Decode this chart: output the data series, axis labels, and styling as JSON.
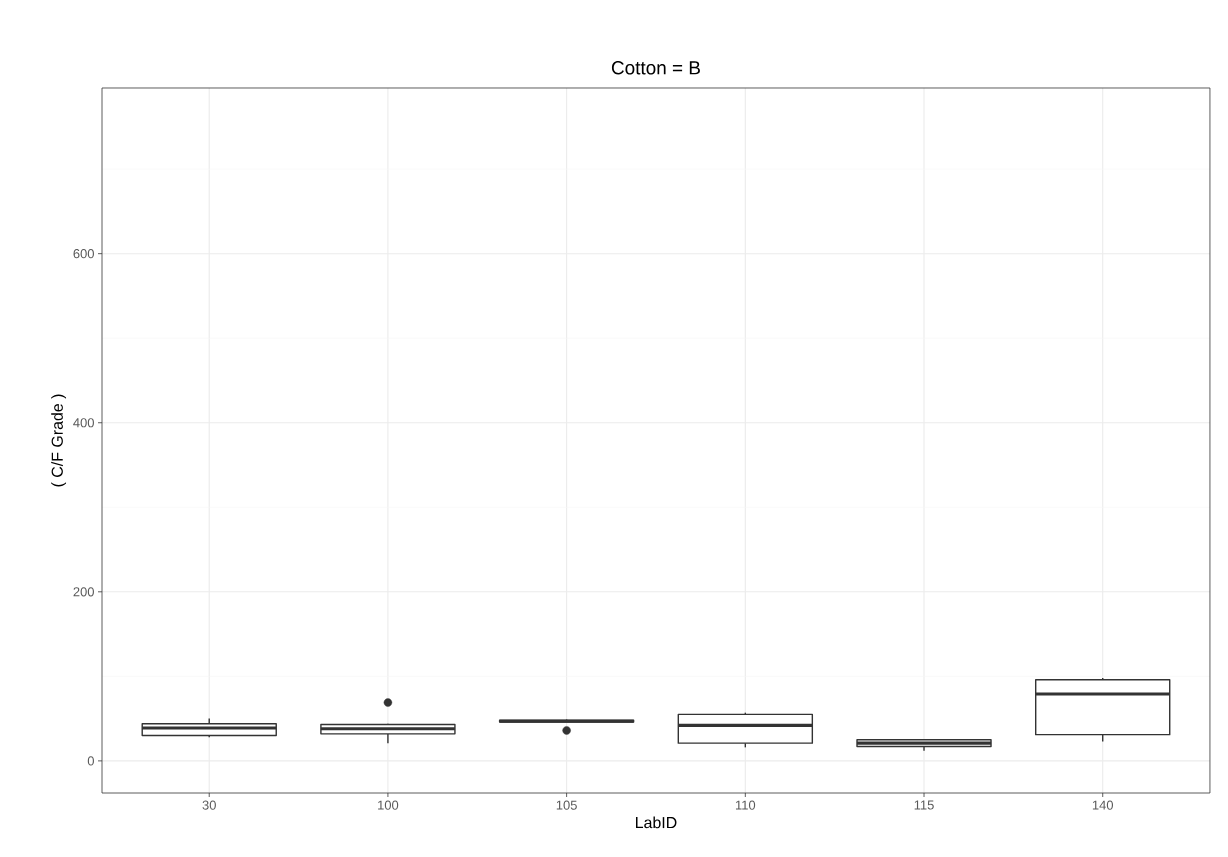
{
  "chart_data": {
    "type": "box",
    "title": "Cotton = B",
    "xlabel": "LabID",
    "ylabel": "( C/F Grade )",
    "categories": [
      "30",
      "100",
      "105",
      "110",
      "115",
      "140"
    ],
    "series": [
      {
        "color": "#333333",
        "boxes": [
          {
            "low": 28,
            "q1": 30,
            "median": 39,
            "q3": 44,
            "high": 50
          },
          {
            "low": 21,
            "q1": 32,
            "median": 38,
            "q3": 43,
            "high": 44,
            "outliers": [
              69
            ]
          },
          {
            "low": 46,
            "q1": 46,
            "median": 47,
            "q3": 48,
            "high": 49,
            "outliers": [
              36
            ]
          },
          {
            "low": 16,
            "q1": 21,
            "median": 42,
            "q3": 55,
            "high": 57
          },
          {
            "low": 12,
            "q1": 17,
            "median": 21,
            "q3": 25,
            "high": 26
          },
          {
            "low": 23,
            "q1": 31,
            "median": 79,
            "q3": 96,
            "high": 98
          }
        ]
      }
    ],
    "ylim": [
      -38,
      796
    ],
    "yticks": [
      0,
      200,
      400,
      600
    ],
    "grid": true
  }
}
